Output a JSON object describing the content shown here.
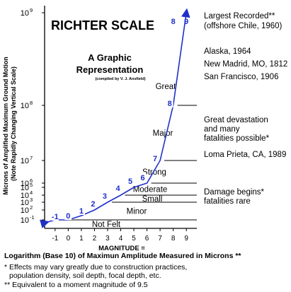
{
  "chart_data": {
    "type": "line",
    "title": "RICHTER SCALE",
    "subtitle_lines": [
      "A Graphic",
      "Representation"
    ],
    "credit": "(compiled by V. J. Ansfield)",
    "ylabel_lines": [
      "Microns of Amplified Maximum Ground Motion",
      "(Note Rapidly Changing Vertical Scale)"
    ],
    "xlabel": "MAGNITUDE =",
    "xlabel_sub": "Logarithm (Base 10) of Maximun Amplitude Measured in Microns **",
    "x_ticks": [
      "-1",
      "0",
      "1",
      "2",
      "3",
      "4",
      "5",
      "6",
      "7",
      "8",
      "9"
    ],
    "xlim": [
      -1.8,
      9.8
    ],
    "y_ticks": [
      {
        "label": "10",
        "exp": "-1",
        "value": 0.1
      },
      {
        "label": "10",
        "exp": "2",
        "value": 100
      },
      {
        "label": "10",
        "exp": "3",
        "value": 1000
      },
      {
        "label": "10",
        "exp": "4",
        "value": 10000
      },
      {
        "label": "10",
        "exp": "5",
        "value": 100000
      },
      {
        "label": "10",
        "exp": "6",
        "value": 1000000
      },
      {
        "label": "10",
        "exp": "7",
        "value": 10000000
      },
      {
        "label": "10",
        "exp": "8",
        "value": 100000000
      },
      {
        "label": "10",
        "exp": "9",
        "value": 1000000000
      }
    ],
    "series": [
      {
        "x": [
          -1,
          0,
          1,
          2,
          3,
          4,
          5,
          6,
          7,
          8,
          9
        ],
        "y": [
          0.1,
          1,
          10,
          100,
          1000,
          10000,
          100000,
          1000000,
          10000000,
          100000000,
          1000000000
        ],
        "point_labels": [
          "-1",
          "0",
          "1",
          "2",
          "3",
          "4",
          "5",
          "6",
          "7",
          "8",
          "9"
        ],
        "color": "#1f2fc8"
      }
    ],
    "top_labels": [
      "8",
      "9"
    ],
    "categories": [
      {
        "label": "Not Felt",
        "upper_y": 0.1
      },
      {
        "label": "Minor",
        "upper_y": 1000
      },
      {
        "label": "Small",
        "upper_y": 10000
      },
      {
        "label": "Moderate",
        "upper_y": 1000000
      },
      {
        "label": "Strong",
        "upper_y": 10000000
      },
      {
        "label": "Major",
        "upper_y": 100000000
      },
      {
        "label": "Great",
        "upper_y": null
      }
    ],
    "annotations": [
      "Largest Recorded**",
      "(offshore Chile, 1960)",
      "Alaska, 1964",
      "New Madrid, MO, 1812",
      "San Francisco, 1906",
      "Great devastation",
      "and many",
      "fatalities possible*",
      "Loma Prieta, CA, 1989",
      "Damage begins*",
      "fatalities rare"
    ],
    "footnotes": [
      "* Effects may vary greatly due to construction practices,",
      "population density, soil depth, focal depth, etc.",
      "** Equivalent to a moment magnitude of 9.5"
    ]
  }
}
